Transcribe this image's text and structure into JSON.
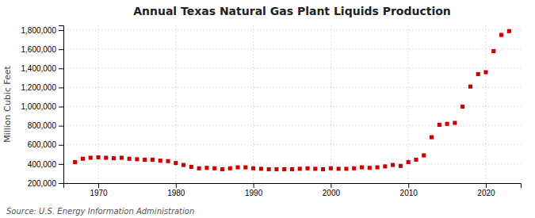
{
  "chart_data": {
    "type": "scatter",
    "title": "Annual Texas Natural Gas Plant Liquids Production",
    "ylabel": "Million Cubic Feet",
    "annotation": "Source: U.S. Energy Information Administration",
    "x": [
      1967,
      1968,
      1969,
      1970,
      1971,
      1972,
      1973,
      1974,
      1975,
      1976,
      1977,
      1978,
      1979,
      1980,
      1981,
      1982,
      1983,
      1984,
      1985,
      1986,
      1987,
      1988,
      1989,
      1990,
      1991,
      1992,
      1993,
      1994,
      1995,
      1996,
      1997,
      1998,
      1999,
      2000,
      2001,
      2002,
      2003,
      2004,
      2005,
      2006,
      2007,
      2008,
      2009,
      2010,
      2011,
      2012,
      2013,
      2014,
      2015,
      2016,
      2017,
      2018,
      2019,
      2020,
      2021,
      2022,
      2023
    ],
    "values": [
      420000,
      455000,
      465000,
      470000,
      465000,
      460000,
      465000,
      455000,
      450000,
      445000,
      445000,
      435000,
      430000,
      410000,
      390000,
      370000,
      355000,
      360000,
      355000,
      345000,
      355000,
      365000,
      365000,
      355000,
      350000,
      345000,
      345000,
      345000,
      345000,
      350000,
      355000,
      350000,
      345000,
      355000,
      350000,
      350000,
      355000,
      365000,
      360000,
      365000,
      375000,
      390000,
      380000,
      420000,
      445000,
      490000,
      680000,
      810000,
      820000,
      830000,
      1000000,
      1210000,
      1340000,
      1360000,
      1580000,
      1750000,
      1790000
    ],
    "color": "#cc0000",
    "marker": "square",
    "xlim": [
      1965.5,
      2024.5
    ],
    "xticks": [
      1970,
      1980,
      1990,
      2000,
      2010,
      2020
    ],
    "ylim": [
      200000,
      1850000
    ],
    "yticks": [
      {
        "value": 200000,
        "label": "200,000"
      },
      {
        "value": 400000,
        "label": "400,000"
      },
      {
        "value": 600000,
        "label": "600,000"
      },
      {
        "value": 800000,
        "label": "800,000"
      },
      {
        "value": 1000000,
        "label": "1,000,000"
      },
      {
        "value": 1200000,
        "label": "1,200,000"
      },
      {
        "value": 1400000,
        "label": "1,400,000"
      },
      {
        "value": 1600000,
        "label": "1,600,000"
      },
      {
        "value": 1800000,
        "label": "1,800,000"
      }
    ],
    "grid": true
  }
}
